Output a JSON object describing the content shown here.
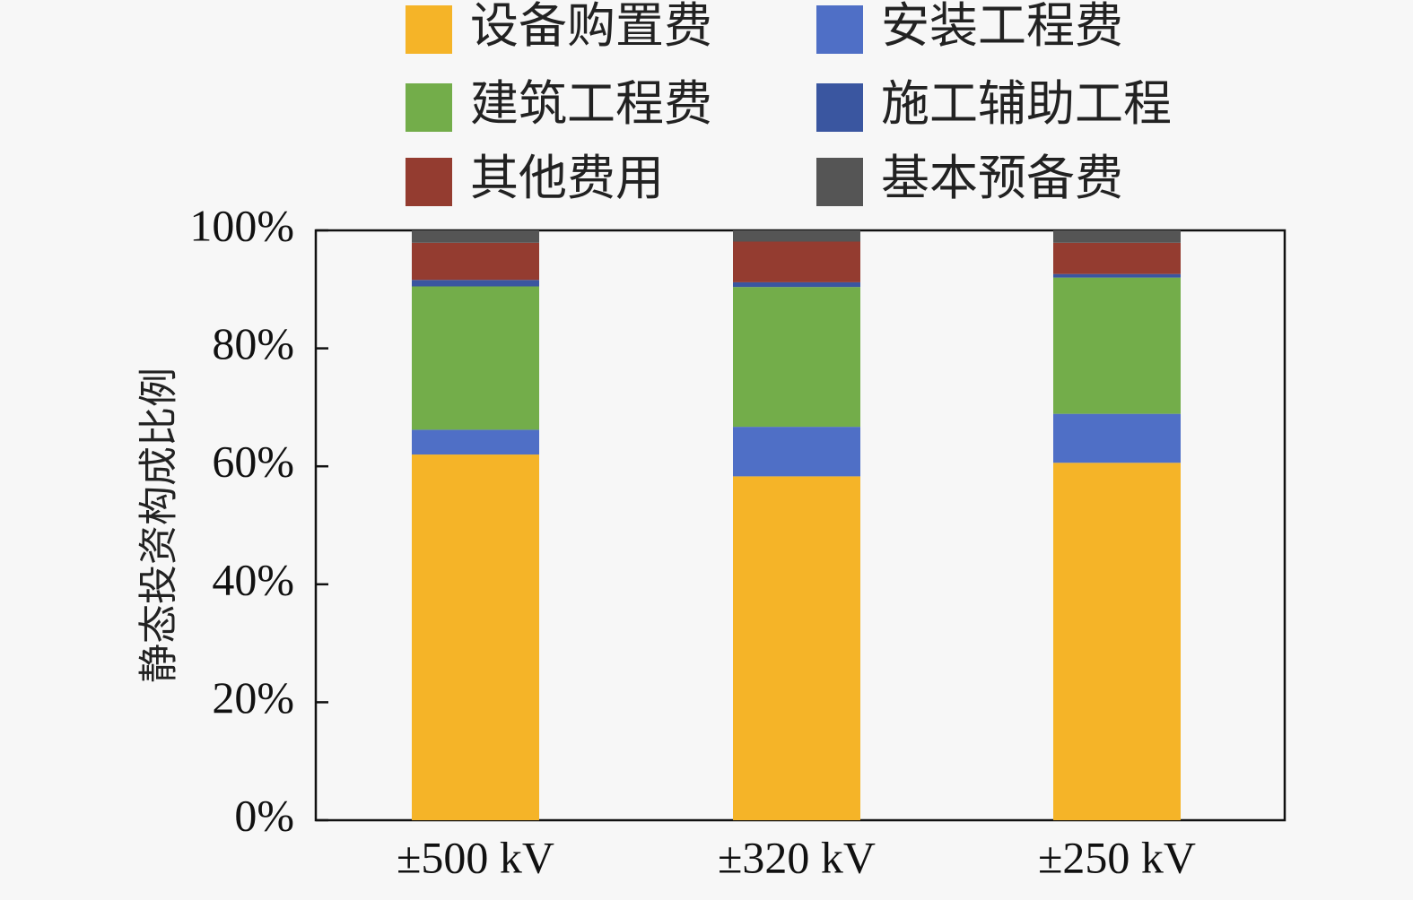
{
  "chart_data": {
    "type": "bar",
    "stacked": true,
    "ylabel": "静态投资构成比例",
    "xlabel": "",
    "ylim": [
      0,
      100
    ],
    "yticks": [
      "0%",
      "20%",
      "40%",
      "60%",
      "80%",
      "100%"
    ],
    "ytick_values": [
      0,
      20,
      40,
      60,
      80,
      100
    ],
    "categories": [
      "±500 kV",
      "±320 kV",
      "±250 kV"
    ],
    "legend_position": "top",
    "series": [
      {
        "name": "设备购置费",
        "color": "#f5b428",
        "values": [
          62.0,
          58.3,
          60.6
        ]
      },
      {
        "name": "安装工程费",
        "color": "#4f6fc6",
        "values": [
          4.2,
          8.4,
          8.3
        ]
      },
      {
        "name": "建筑工程费",
        "color": "#73ad4a",
        "values": [
          24.3,
          23.7,
          23.1
        ]
      },
      {
        "name": "施工辅助工程",
        "color": "#3a56a0",
        "values": [
          1.1,
          0.8,
          0.6
        ]
      },
      {
        "name": "其他费用",
        "color": "#943c30",
        "values": [
          6.3,
          6.9,
          5.3
        ]
      },
      {
        "name": "基本预备费",
        "color": "#555555",
        "values": [
          2.1,
          1.9,
          2.1
        ]
      }
    ]
  }
}
